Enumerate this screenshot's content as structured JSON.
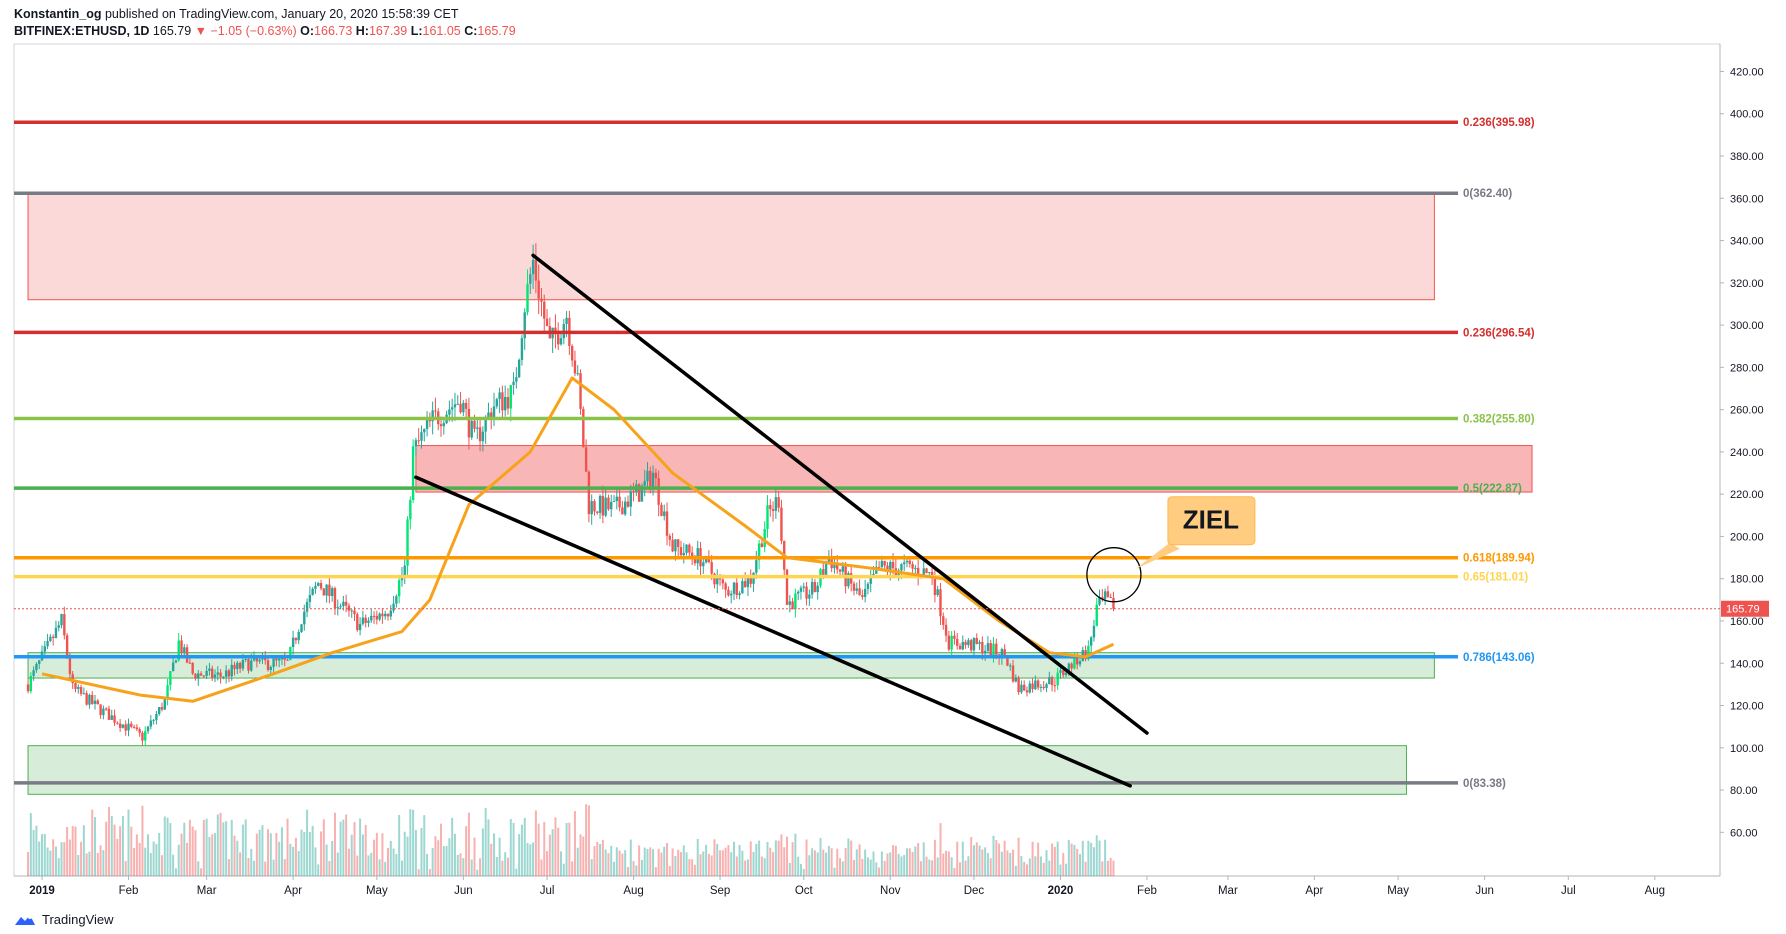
{
  "header": {
    "author": "Konstantin_og",
    "published_text": "published on TradingView.com, January 20, 2020 15:58:39 CET",
    "symbol": "BITFINEX:ETHUSD, 1D",
    "last": "165.79",
    "change": "−1.05 (−0.63%)",
    "o_label": "O:",
    "o_value": "166.73",
    "h_label": "H:",
    "h_value": "167.39",
    "l_label": "L:",
    "l_value": "161.05",
    "c_label": "C:",
    "c_value": "165.79"
  },
  "footer": {
    "brand": "TradingView"
  },
  "colors": {
    "up": "#26a69a",
    "bright_up": "#00e676",
    "down": "#ef5350",
    "ma": "#f7a21b",
    "axis": "#b2b5be",
    "text": "#131722"
  },
  "chart_data": {
    "type": "candlestick",
    "symbol": "BITFINEX:ETHUSD",
    "interval": "1D",
    "y_range": [
      40,
      430
    ],
    "y_ticks": [
      60,
      80,
      100,
      120,
      140,
      160,
      180,
      200,
      220,
      240,
      260,
      280,
      300,
      320,
      340,
      360,
      380,
      400,
      420
    ],
    "y_tick_labels": [
      "60.00",
      "80.00",
      "100.00",
      "120.00",
      "140.00",
      "160.00",
      "180.00",
      "200.00",
      "220.00",
      "240.00",
      "260.00",
      "280.00",
      "300.00",
      "320.00",
      "340.00",
      "360.00",
      "380.00",
      "400.00",
      "420.00"
    ],
    "x_ticks": [
      {
        "label": "2019",
        "bold": true,
        "date": "2019-01-01"
      },
      {
        "label": "Feb",
        "date": "2019-02-01"
      },
      {
        "label": "Mar",
        "date": "2019-03-01"
      },
      {
        "label": "Apr",
        "date": "2019-04-01"
      },
      {
        "label": "May",
        "date": "2019-05-01"
      },
      {
        "label": "Jun",
        "date": "2019-06-01"
      },
      {
        "label": "Jul",
        "date": "2019-07-01"
      },
      {
        "label": "Aug",
        "date": "2019-08-01"
      },
      {
        "label": "Sep",
        "date": "2019-09-01"
      },
      {
        "label": "Oct",
        "date": "2019-10-01"
      },
      {
        "label": "Nov",
        "date": "2019-11-01"
      },
      {
        "label": "Dec",
        "date": "2019-12-01"
      },
      {
        "label": "2020",
        "bold": true,
        "date": "2020-01-01"
      },
      {
        "label": "Feb",
        "date": "2020-02-01"
      },
      {
        "label": "Mar",
        "date": "2020-03-01"
      },
      {
        "label": "Apr",
        "date": "2020-04-01"
      },
      {
        "label": "May",
        "date": "2020-05-01"
      },
      {
        "label": "Jun",
        "date": "2020-06-01"
      },
      {
        "label": "Jul",
        "date": "2020-07-01"
      },
      {
        "label": "Aug",
        "date": "2020-08-01"
      }
    ],
    "price_path": [
      [
        "2018-12-27",
        130
      ],
      [
        "2019-01-08",
        160
      ],
      [
        "2019-01-12",
        128
      ],
      [
        "2019-01-22",
        118
      ],
      [
        "2019-02-06",
        105
      ],
      [
        "2019-02-14",
        122
      ],
      [
        "2019-02-19",
        150
      ],
      [
        "2019-02-24",
        135
      ],
      [
        "2019-03-06",
        134
      ],
      [
        "2019-03-16",
        140
      ],
      [
        "2019-03-30",
        140
      ],
      [
        "2019-04-04",
        162
      ],
      [
        "2019-04-10",
        178
      ],
      [
        "2019-04-25",
        158
      ],
      [
        "2019-05-05",
        165
      ],
      [
        "2019-05-11",
        185
      ],
      [
        "2019-05-14",
        240
      ],
      [
        "2019-05-21",
        255
      ],
      [
        "2019-05-31",
        265
      ],
      [
        "2019-06-05",
        245
      ],
      [
        "2019-06-12",
        262
      ],
      [
        "2019-06-19",
        268
      ],
      [
        "2019-06-23",
        310
      ],
      [
        "2019-06-26",
        330
      ],
      [
        "2019-07-02",
        290
      ],
      [
        "2019-07-08",
        305
      ],
      [
        "2019-07-12",
        272
      ],
      [
        "2019-07-16",
        215
      ],
      [
        "2019-07-25",
        213
      ],
      [
        "2019-08-04",
        222
      ],
      [
        "2019-08-08",
        230
      ],
      [
        "2019-08-15",
        195
      ],
      [
        "2019-08-25",
        190
      ],
      [
        "2019-09-03",
        174
      ],
      [
        "2019-09-12",
        180
      ],
      [
        "2019-09-18",
        210
      ],
      [
        "2019-09-22",
        218
      ],
      [
        "2019-09-25",
        168
      ],
      [
        "2019-10-05",
        175
      ],
      [
        "2019-10-10",
        190
      ],
      [
        "2019-10-22",
        170
      ],
      [
        "2019-10-28",
        185
      ],
      [
        "2019-11-08",
        185
      ],
      [
        "2019-11-16",
        182
      ],
      [
        "2019-11-22",
        150
      ],
      [
        "2019-12-03",
        148
      ],
      [
        "2019-12-12",
        144
      ],
      [
        "2019-12-17",
        128
      ],
      [
        "2019-12-22",
        130
      ],
      [
        "2019-12-30",
        132
      ],
      [
        "2020-01-07",
        142
      ],
      [
        "2020-01-11",
        146
      ],
      [
        "2020-01-14",
        166
      ],
      [
        "2020-01-17",
        170
      ],
      [
        "2020-01-20",
        165.79
      ]
    ],
    "ma_path": [
      [
        "2019-01-01",
        135
      ],
      [
        "2019-02-05",
        125
      ],
      [
        "2019-02-24",
        122
      ],
      [
        "2019-03-25",
        135
      ],
      [
        "2019-04-15",
        145
      ],
      [
        "2019-05-10",
        155
      ],
      [
        "2019-05-20",
        170
      ],
      [
        "2019-06-03",
        215
      ],
      [
        "2019-06-25",
        240
      ],
      [
        "2019-07-10",
        275
      ],
      [
        "2019-07-25",
        260
      ],
      [
        "2019-08-15",
        230
      ],
      [
        "2019-09-10",
        205
      ],
      [
        "2019-09-25",
        190
      ],
      [
        "2019-10-25",
        185
      ],
      [
        "2019-11-20",
        180
      ],
      [
        "2019-12-10",
        160
      ],
      [
        "2019-12-28",
        145
      ],
      [
        "2020-01-10",
        143
      ],
      [
        "2020-01-20",
        149
      ]
    ],
    "levels": [
      {
        "price": 395.98,
        "label": "0.236(395.98)",
        "color": "#d32f2f"
      },
      {
        "price": 362.4,
        "label": "0(362.40)",
        "color": "#787b86"
      },
      {
        "price": 296.54,
        "label": "0.236(296.54)",
        "color": "#d32f2f"
      },
      {
        "price": 255.8,
        "label": "0.382(255.80)",
        "color": "#8bc34a"
      },
      {
        "price": 222.87,
        "label": "0.5(222.87)",
        "color": "#4caf50"
      },
      {
        "price": 189.94,
        "label": "0.618(189.94)",
        "color": "#ff9800"
      },
      {
        "price": 181.01,
        "label": "0.65(181.01)",
        "color": "#ffd54f"
      },
      {
        "price": 143.06,
        "label": "0.786(143.06)",
        "color": "#2196f3"
      },
      {
        "price": 83.38,
        "label": "0(83.38)",
        "color": "#787b86"
      }
    ],
    "zones": [
      {
        "kind": "resistance",
        "from_date": "2018-12-27",
        "to_date": "2020-05-14",
        "low": 312,
        "high": 362
      },
      {
        "kind": "resistance",
        "from_date": "2019-05-15",
        "to_date": "2020-06-18",
        "low": 221,
        "high": 243
      },
      {
        "kind": "support",
        "from_date": "2018-12-27",
        "to_date": "2020-05-14",
        "low": 133,
        "high": 145
      },
      {
        "kind": "support",
        "from_date": "2018-12-27",
        "to_date": "2020-05-04",
        "low": 78,
        "high": 101
      }
    ],
    "trendlines": [
      {
        "from": [
          "2019-06-26",
          333
        ],
        "to": [
          "2020-02-01",
          107
        ]
      },
      {
        "from": [
          "2019-05-15",
          228
        ],
        "to": [
          "2020-01-26",
          82
        ]
      }
    ],
    "target": {
      "label": "ZIEL",
      "date": "2020-01-18",
      "price": 180
    },
    "last_price": {
      "value": 165.79,
      "label": "165.79"
    }
  }
}
